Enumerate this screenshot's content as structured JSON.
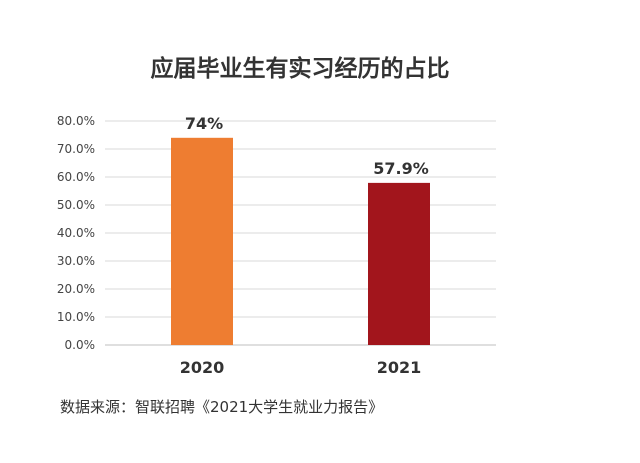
{
  "source_note": "数据来源：智联招聘《2021大学生就业力报告》",
  "chart_data": {
    "type": "bar",
    "title": "应届毕业生有实习经历的占比",
    "categories": [
      "2020",
      "2021"
    ],
    "values": [
      74.0,
      57.9
    ],
    "data_labels": [
      "74%",
      "57.9%"
    ],
    "ylim": [
      0,
      80
    ],
    "yticks": [
      0,
      10,
      20,
      30,
      40,
      50,
      60,
      70,
      80
    ],
    "ytick_labels": [
      "0.0%",
      "10.0%",
      "20.0%",
      "30.0%",
      "40.0%",
      "50.0%",
      "60.0%",
      "70.0%",
      "80.0%"
    ],
    "bar_colors": [
      "#ee7d31",
      "#a2151c"
    ],
    "grid": true,
    "legend": "none",
    "xlabel": "",
    "ylabel": ""
  }
}
